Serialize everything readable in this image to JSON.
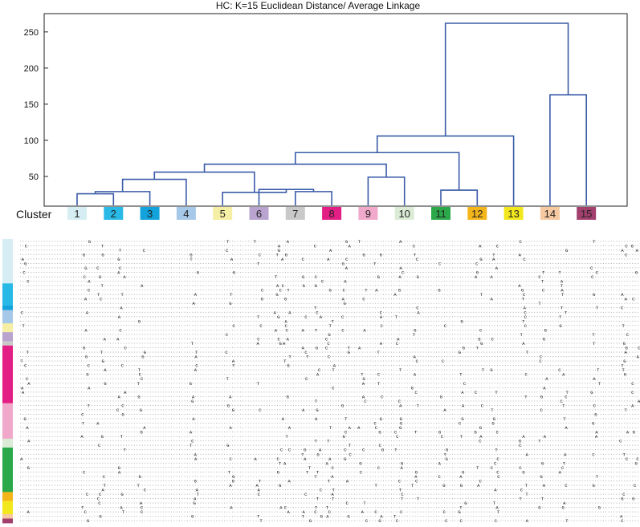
{
  "chart_data": {
    "type": "dendrogram",
    "title": "HC: K=15 Euclidean Distance/ Average Linkage",
    "xlabel": "Cluster",
    "ylabel": "",
    "ylim": [
      10,
      270
    ],
    "yticks": [
      50,
      100,
      150,
      200,
      250
    ],
    "clusters": [
      {
        "label": "1",
        "color": "#d6eef3"
      },
      {
        "label": "2",
        "color": "#29b9e6"
      },
      {
        "label": "3",
        "color": "#12a2dc"
      },
      {
        "label": "4",
        "color": "#a7c9e9"
      },
      {
        "label": "5",
        "color": "#f5efa5"
      },
      {
        "label": "6",
        "color": "#b9a3cf"
      },
      {
        "label": "7",
        "color": "#c9c9c9"
      },
      {
        "label": "8",
        "color": "#e31e84"
      },
      {
        "label": "9",
        "color": "#f1a9cb"
      },
      {
        "label": "10",
        "color": "#dbebd6"
      },
      {
        "label": "11",
        "color": "#2ba84a"
      },
      {
        "label": "12",
        "color": "#f4b51a"
      },
      {
        "label": "13",
        "color": "#f3e81e"
      },
      {
        "label": "14",
        "color": "#f6c9a1"
      },
      {
        "label": "15",
        "color": "#a23f6e"
      }
    ],
    "merges": [
      {
        "a": "1",
        "b": "2",
        "height": 26,
        "id": "m1"
      },
      {
        "a": "m1",
        "b": "3",
        "height": 29,
        "id": "m2"
      },
      {
        "a": "m2",
        "b": "4",
        "height": 46,
        "id": "m3"
      },
      {
        "a": "7",
        "b": "8",
        "height": 29,
        "id": "m4"
      },
      {
        "a": "6",
        "b": "m4",
        "height": 32,
        "id": "m5"
      },
      {
        "a": "5",
        "b": "m5",
        "height": 28,
        "id": "m6"
      },
      {
        "a": "m3",
        "b": "m6",
        "height": 56,
        "id": "m7"
      },
      {
        "a": "9",
        "b": "10",
        "height": 49,
        "id": "m8"
      },
      {
        "a": "m7",
        "b": "m8",
        "height": 67,
        "id": "m9"
      },
      {
        "a": "11",
        "b": "12",
        "height": 31,
        "id": "m10"
      },
      {
        "a": "m9",
        "b": "m10",
        "height": 83,
        "id": "m11"
      },
      {
        "a": "m11",
        "b": "13",
        "height": 106,
        "id": "m12"
      },
      {
        "a": "14",
        "b": "15",
        "height": 163,
        "id": "m13"
      },
      {
        "a": "m12",
        "b": "m13",
        "height": 262,
        "id": "m14"
      }
    ]
  },
  "alignment": {
    "row_cluster_sequence": [
      1,
      1,
      1,
      1,
      1,
      1,
      1,
      1,
      1,
      1,
      2,
      2,
      2,
      2,
      2,
      3,
      4,
      4,
      4,
      5,
      5,
      6,
      6,
      7,
      8,
      8,
      8,
      8,
      8,
      8,
      8,
      8,
      8,
      8,
      8,
      8,
      8,
      9,
      9,
      9,
      9,
      9,
      9,
      9,
      9,
      10,
      10,
      11,
      11,
      11,
      11,
      11,
      11,
      11,
      11,
      11,
      11,
      12,
      12,
      13,
      13,
      13,
      14,
      15
    ],
    "alphabet": "ACGT"
  }
}
